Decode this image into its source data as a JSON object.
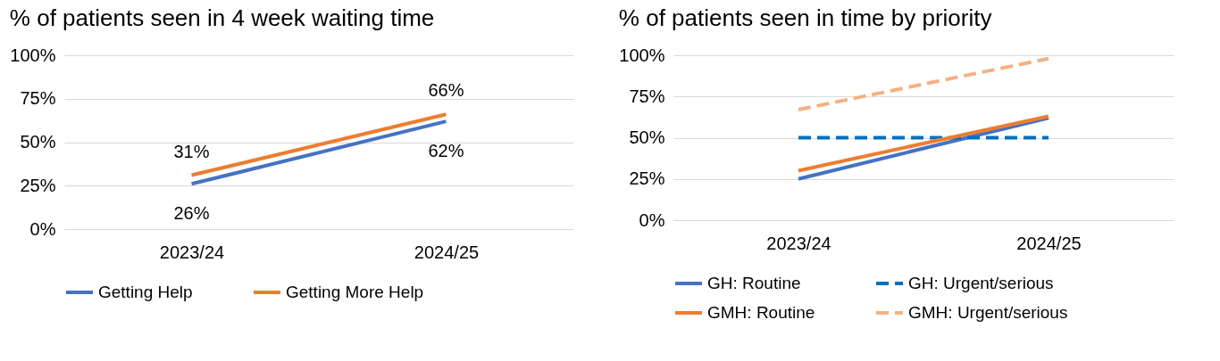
{
  "chart_data": [
    {
      "type": "line",
      "title": "% of patients seen in 4 week waiting time",
      "categories": [
        "2023/24",
        "2024/25"
      ],
      "series": [
        {
          "name": "Getting Help",
          "color": "#4472c4",
          "values": [
            26,
            62
          ],
          "value_labels": [
            "26%",
            "62%"
          ]
        },
        {
          "name": "Getting More Help",
          "color": "#ed7d31",
          "values": [
            31,
            66
          ],
          "value_labels": [
            "31%",
            "66%"
          ]
        }
      ],
      "ylim": [
        0,
        100
      ],
      "yticks": [
        {
          "value": 0,
          "label": "0%"
        },
        {
          "value": 25,
          "label": "25%"
        },
        {
          "value": 50,
          "label": "50%"
        },
        {
          "value": 75,
          "label": "75%"
        },
        {
          "value": 100,
          "label": "100%"
        }
      ],
      "grid": "y",
      "legend": "bottom"
    },
    {
      "type": "line",
      "title": "% of patients seen in time by priority",
      "categories": [
        "2023/24",
        "2024/25"
      ],
      "series": [
        {
          "name": "GH: Routine",
          "color": "#4472c4",
          "values": [
            25,
            62
          ],
          "line_style": "solid"
        },
        {
          "name": "GH: Urgent/serious",
          "color": "#0070c0",
          "values": [
            50,
            50
          ],
          "line_style": "dashed"
        },
        {
          "name": "GMH: Routine",
          "color": "#ed7d31",
          "values": [
            30,
            63
          ],
          "line_style": "solid"
        },
        {
          "name": "GMH: Urgent/serious",
          "color": "#f4b183",
          "values": [
            67,
            98
          ],
          "line_style": "dashed"
        }
      ],
      "ylim": [
        0,
        100
      ],
      "yticks": [
        {
          "value": 0,
          "label": "0%"
        },
        {
          "value": 25,
          "label": "25%"
        },
        {
          "value": 50,
          "label": "50%"
        },
        {
          "value": 75,
          "label": "75%"
        },
        {
          "value": 100,
          "label": "100%"
        }
      ],
      "grid": "y",
      "legend": "bottom"
    }
  ]
}
